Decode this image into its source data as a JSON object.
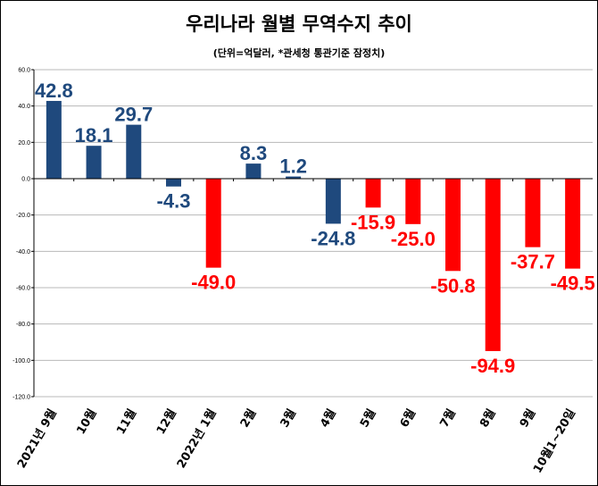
{
  "chart_data": {
    "type": "bar",
    "title": "우리나라 월별 무역수지 추이",
    "subtitle": "(단위=억달러, *관세청 통관기준 잠정치)",
    "categories": [
      "2021년 9월",
      "10월",
      "11월",
      "12월",
      "2022년 1월",
      "2월",
      "3월",
      "4월",
      "5월",
      "6월",
      "7월",
      "8월",
      "9월",
      "10월1~20일"
    ],
    "values": [
      42.8,
      18.1,
      29.7,
      -4.3,
      -49.0,
      8.3,
      1.2,
      -24.8,
      -15.9,
      -25.0,
      -50.8,
      -94.9,
      -37.7,
      -49.5
    ],
    "data_labels": [
      "42.8",
      "18.1",
      "29.7",
      "-4.3",
      "-49.0",
      "8.3",
      "1.2",
      "-24.8",
      "-15.9",
      "-25.0",
      "-50.8",
      "-94.9",
      "-37.7",
      "-49.5"
    ],
    "series_colors": [
      "#1F497D",
      "#1F497D",
      "#1F497D",
      "#1F497D",
      "#FF0000",
      "#1F497D",
      "#1F497D",
      "#1F497D",
      "#FF0000",
      "#FF0000",
      "#FF0000",
      "#FF0000",
      "#FF0000",
      "#FF0000"
    ],
    "label_colors": [
      "#1F497D",
      "#1F497D",
      "#1F497D",
      "#1F497D",
      "#FF0000",
      "#1F497D",
      "#1F497D",
      "#1F497D",
      "#FF0000",
      "#FF0000",
      "#FF0000",
      "#FF0000",
      "#FF0000",
      "#FF0000"
    ],
    "y_ticks": [
      "60.0",
      "40.0",
      "20.0",
      "0.0",
      "-20.0",
      "-40.0",
      "-60.0",
      "-80.0",
      "-100.0",
      "-120.0"
    ],
    "ylim": [
      -120,
      60
    ],
    "xlabel": "",
    "ylabel": "",
    "grid": true
  }
}
